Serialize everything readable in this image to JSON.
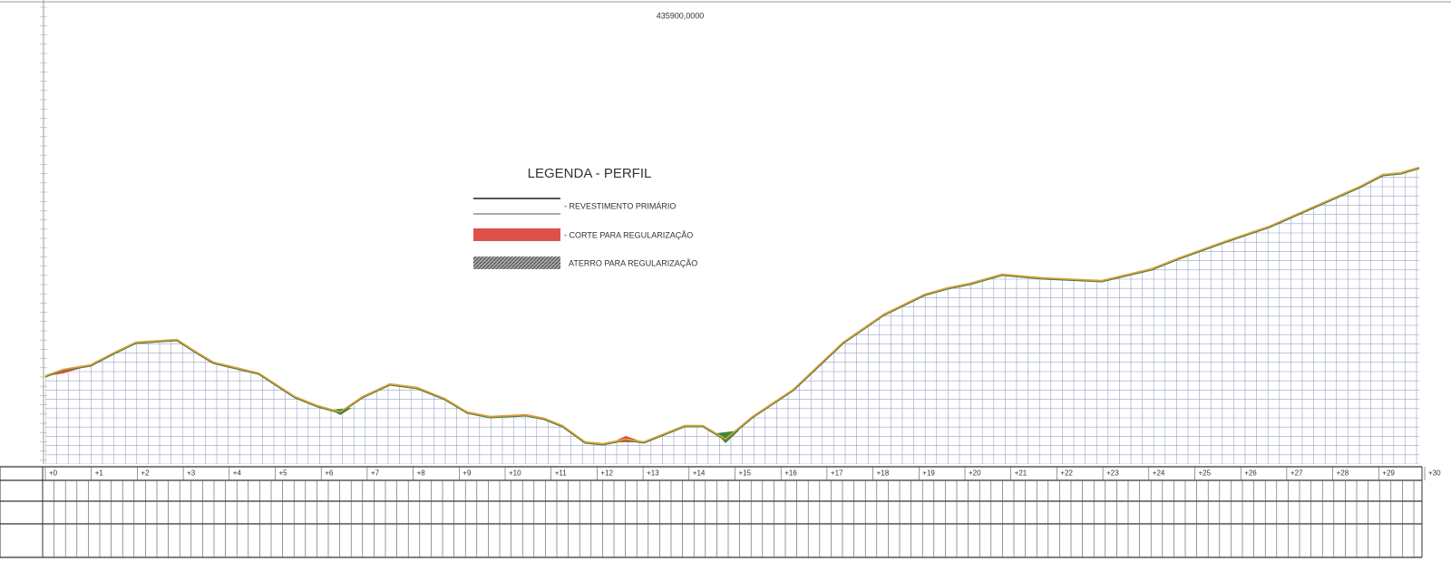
{
  "header": {
    "coordinate": "435900,0000"
  },
  "legend": {
    "title": "LEGENDA - PERFIL",
    "items": [
      "- REVESTIMENTO PRIMÁRIO",
      "- CORTE PARA REGULARIZAÇÃO",
      "ATERRO PARA REGULARIZAÇÃO"
    ]
  },
  "stations": [
    "+0",
    "+1",
    "+2",
    "+3",
    "+4",
    "+5",
    "+6",
    "+7",
    "+8",
    "+9",
    "+10",
    "+11",
    "+12",
    "+13",
    "+14",
    "+15",
    "+16",
    "+17",
    "+18",
    "+19",
    "+20",
    "+21",
    "+22",
    "+23",
    "+24",
    "+25",
    "+26",
    "+27",
    "+28",
    "+29",
    "+30"
  ]
}
